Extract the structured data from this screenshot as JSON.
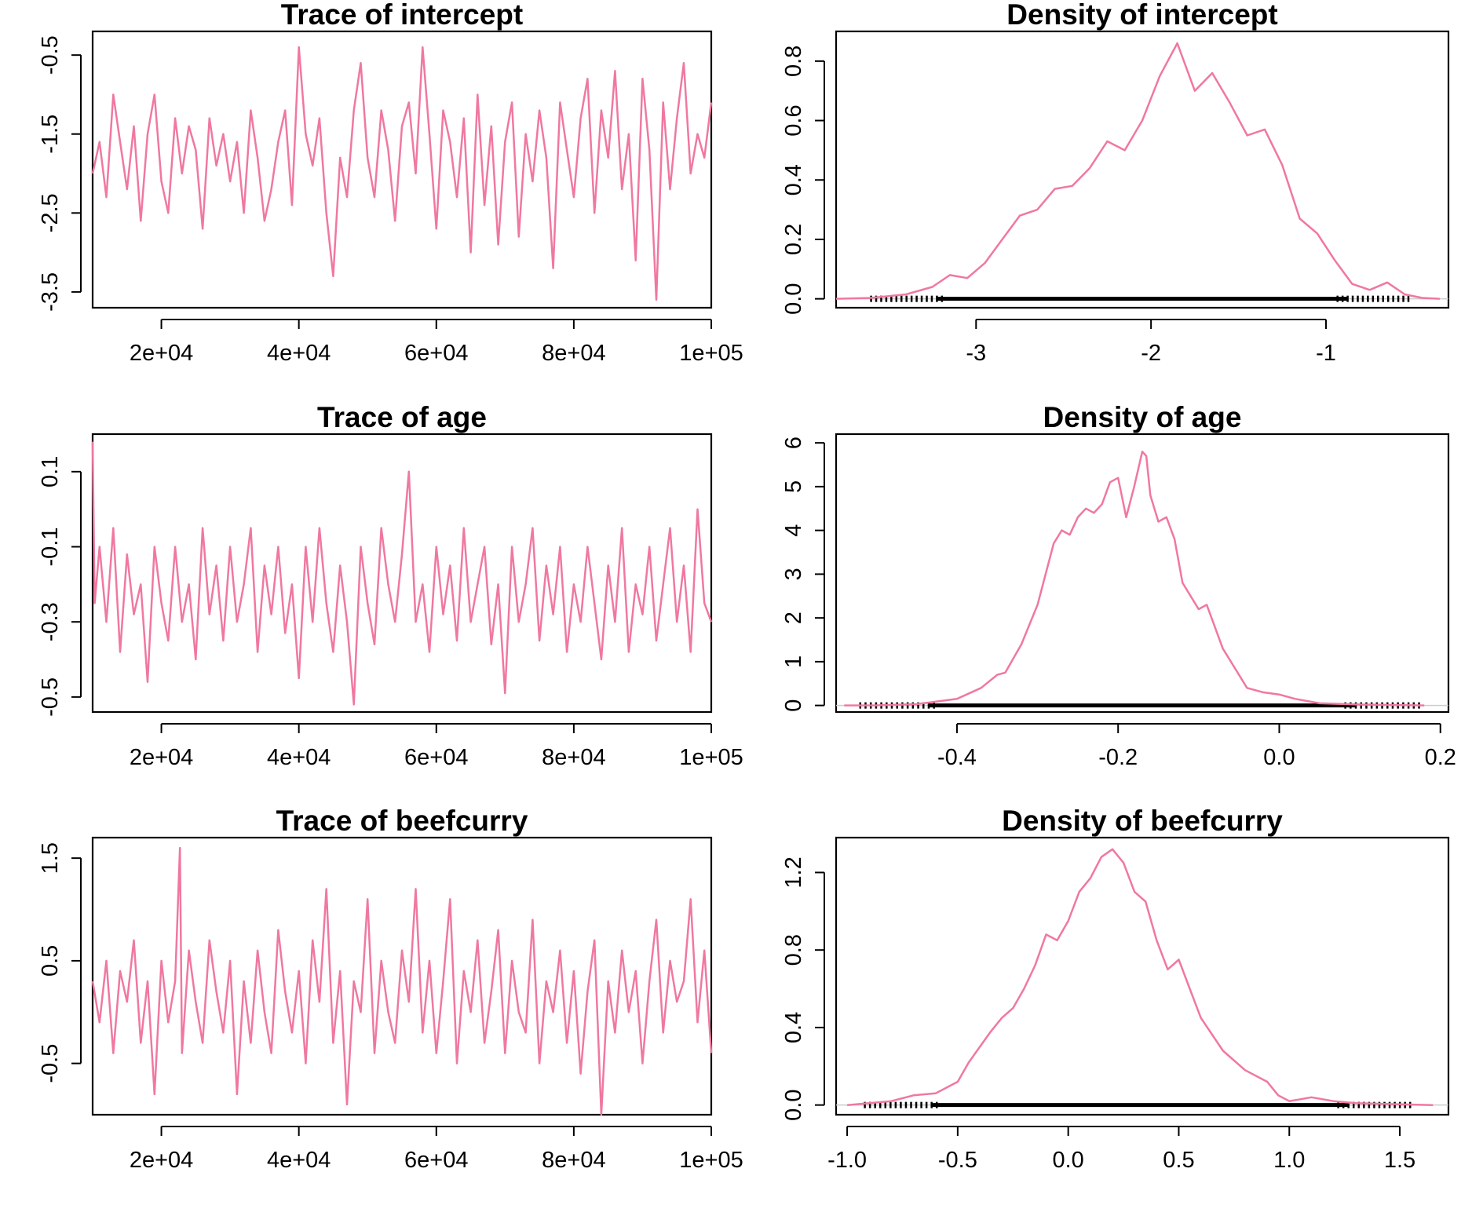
{
  "chart_data": [
    {
      "type": "line",
      "title": "Trace of intercept",
      "xlabel": "",
      "ylabel": "",
      "xlim": [
        10000,
        100000
      ],
      "ylim": [
        -3.7,
        -0.2
      ],
      "xticks": [
        20000,
        40000,
        60000,
        80000,
        100000
      ],
      "xtick_labels": [
        "2e+04",
        "4e+04",
        "6e+04",
        "8e+04",
        "1e+05"
      ],
      "yticks": [
        -3.5,
        -2.5,
        -1.5,
        -0.5
      ],
      "ytick_labels": [
        "-3.5",
        "-2.5",
        "-1.5",
        "-0.5"
      ],
      "color": "#F078A0",
      "grid": false,
      "series": [
        {
          "x": [
            10000,
            11000,
            12000,
            13000,
            14000,
            15000,
            16000,
            17000,
            18000,
            19000,
            20000,
            21000,
            22000,
            23000,
            24000,
            25000,
            26000,
            27000,
            28000,
            29000,
            30000,
            31000,
            32000,
            33000,
            34000,
            35000,
            36000,
            37000,
            38000,
            39000,
            40000,
            41000,
            42000,
            43000,
            44000,
            45000,
            46000,
            47000,
            48000,
            49000,
            50000,
            51000,
            52000,
            53000,
            54000,
            55000,
            56000,
            57000,
            58000,
            59000,
            60000,
            61000,
            62000,
            63000,
            64000,
            65000,
            66000,
            67000,
            68000,
            69000,
            70000,
            71000,
            72000,
            73000,
            74000,
            75000,
            76000,
            77000,
            78000,
            79000,
            80000,
            81000,
            82000,
            83000,
            84000,
            85000,
            86000,
            87000,
            88000,
            89000,
            90000,
            91000,
            92000,
            93000,
            94000,
            95000,
            96000,
            97000,
            98000,
            99000,
            100000
          ],
          "values": [
            -2.0,
            -1.6,
            -2.3,
            -1.0,
            -1.6,
            -2.2,
            -1.4,
            -2.6,
            -1.5,
            -1.0,
            -2.1,
            -2.5,
            -1.3,
            -2.0,
            -1.4,
            -1.7,
            -2.7,
            -1.3,
            -1.9,
            -1.5,
            -2.1,
            -1.6,
            -2.5,
            -1.2,
            -1.8,
            -2.6,
            -2.2,
            -1.6,
            -1.2,
            -2.4,
            -0.4,
            -1.5,
            -1.9,
            -1.3,
            -2.5,
            -3.3,
            -1.8,
            -2.3,
            -1.2,
            -0.6,
            -1.8,
            -2.3,
            -1.2,
            -1.7,
            -2.6,
            -1.4,
            -1.1,
            -2.0,
            -0.4,
            -1.5,
            -2.7,
            -1.2,
            -1.6,
            -2.3,
            -1.3,
            -3.0,
            -1.0,
            -2.4,
            -1.4,
            -2.9,
            -1.6,
            -1.1,
            -2.8,
            -1.5,
            -2.1,
            -1.2,
            -1.8,
            -3.2,
            -1.1,
            -1.7,
            -2.3,
            -1.3,
            -0.8,
            -2.5,
            -1.2,
            -1.8,
            -0.7,
            -2.2,
            -1.5,
            -3.1,
            -0.8,
            -1.7,
            -3.6,
            -1.1,
            -2.2,
            -1.3,
            -0.6,
            -2.0,
            -1.5,
            -1.8,
            -1.1
          ]
        }
      ]
    },
    {
      "type": "line",
      "title": "Density of intercept",
      "xlabel": "",
      "ylabel": "",
      "xlim": [
        -3.8,
        -0.3
      ],
      "ylim": [
        -0.03,
        0.9
      ],
      "xticks": [
        -3,
        -2,
        -1
      ],
      "xtick_labels": [
        "-3",
        "-2",
        "-1"
      ],
      "yticks": [
        0.0,
        0.2,
        0.4,
        0.6,
        0.8
      ],
      "ytick_labels": [
        "0.0",
        "0.2",
        "0.4",
        "0.6",
        "0.8"
      ],
      "color": "#F078A0",
      "rug": true,
      "rug_range": [
        -3.6,
        -0.5
      ],
      "grid": false,
      "series": [
        {
          "x": [
            -3.8,
            -3.6,
            -3.4,
            -3.25,
            -3.15,
            -3.05,
            -2.95,
            -2.85,
            -2.75,
            -2.65,
            -2.55,
            -2.45,
            -2.35,
            -2.25,
            -2.15,
            -2.05,
            -1.95,
            -1.85,
            -1.75,
            -1.65,
            -1.55,
            -1.45,
            -1.35,
            -1.25,
            -1.15,
            -1.05,
            -0.95,
            -0.85,
            -0.75,
            -0.65,
            -0.55,
            -0.45,
            -0.35
          ],
          "values": [
            0.0,
            0.003,
            0.015,
            0.04,
            0.08,
            0.07,
            0.12,
            0.2,
            0.28,
            0.3,
            0.37,
            0.38,
            0.44,
            0.53,
            0.5,
            0.6,
            0.75,
            0.86,
            0.7,
            0.76,
            0.66,
            0.55,
            0.57,
            0.45,
            0.27,
            0.22,
            0.13,
            0.05,
            0.03,
            0.055,
            0.015,
            0.003,
            0.0
          ]
        }
      ]
    },
    {
      "type": "line",
      "title": "Trace of age",
      "xlabel": "",
      "ylabel": "",
      "xlim": [
        10000,
        100000
      ],
      "ylim": [
        -0.54,
        0.2
      ],
      "xticks": [
        20000,
        40000,
        60000,
        80000,
        100000
      ],
      "xtick_labels": [
        "2e+04",
        "4e+04",
        "6e+04",
        "8e+04",
        "1e+05"
      ],
      "yticks": [
        -0.5,
        -0.3,
        -0.1,
        0.1
      ],
      "ytick_labels": [
        "-0.5",
        "-0.3",
        "-0.1",
        "0.1"
      ],
      "color": "#F078A0",
      "grid": false,
      "series": [
        {
          "x": [
            10000,
            10300,
            11000,
            12000,
            13000,
            14000,
            15000,
            16000,
            17000,
            18000,
            19000,
            20000,
            21000,
            22000,
            23000,
            24000,
            25000,
            26000,
            27000,
            28000,
            29000,
            30000,
            31000,
            32000,
            33000,
            34000,
            35000,
            36000,
            37000,
            38000,
            39000,
            40000,
            41000,
            42000,
            43000,
            44000,
            45000,
            46000,
            47000,
            48000,
            49000,
            50000,
            51000,
            52000,
            53000,
            54000,
            55000,
            56000,
            57000,
            58000,
            59000,
            60000,
            61000,
            62000,
            63000,
            64000,
            65000,
            66000,
            67000,
            68000,
            69000,
            70000,
            71000,
            72000,
            73000,
            74000,
            75000,
            76000,
            77000,
            78000,
            79000,
            80000,
            81000,
            82000,
            83000,
            84000,
            85000,
            86000,
            87000,
            88000,
            89000,
            90000,
            91000,
            92000,
            93000,
            94000,
            95000,
            96000,
            97000,
            98000,
            99000,
            100000
          ],
          "values": [
            0.18,
            -0.25,
            -0.1,
            -0.3,
            -0.05,
            -0.38,
            -0.12,
            -0.28,
            -0.2,
            -0.46,
            -0.1,
            -0.25,
            -0.35,
            -0.1,
            -0.3,
            -0.2,
            -0.4,
            -0.05,
            -0.28,
            -0.15,
            -0.35,
            -0.1,
            -0.3,
            -0.2,
            -0.05,
            -0.38,
            -0.15,
            -0.28,
            -0.1,
            -0.33,
            -0.2,
            -0.45,
            -0.1,
            -0.3,
            -0.05,
            -0.25,
            -0.38,
            -0.15,
            -0.3,
            -0.52,
            -0.1,
            -0.25,
            -0.36,
            -0.05,
            -0.2,
            -0.3,
            -0.12,
            0.1,
            -0.3,
            -0.2,
            -0.38,
            -0.1,
            -0.28,
            -0.15,
            -0.35,
            -0.05,
            -0.3,
            -0.2,
            -0.1,
            -0.36,
            -0.2,
            -0.49,
            -0.1,
            -0.3,
            -0.2,
            -0.05,
            -0.35,
            -0.15,
            -0.28,
            -0.1,
            -0.38,
            -0.2,
            -0.3,
            -0.1,
            -0.25,
            -0.4,
            -0.15,
            -0.3,
            -0.05,
            -0.38,
            -0.2,
            -0.28,
            -0.1,
            -0.35,
            -0.2,
            -0.05,
            -0.3,
            -0.15,
            -0.38,
            0.0,
            -0.25,
            -0.3
          ]
        }
      ]
    },
    {
      "type": "line",
      "title": "Density of age",
      "xlabel": "",
      "ylabel": "",
      "xlim": [
        -0.55,
        0.21
      ],
      "ylim": [
        -0.15,
        6.2
      ],
      "xticks": [
        -0.4,
        -0.2,
        0.0,
        0.2
      ],
      "xtick_labels": [
        "-0.4",
        "-0.2",
        "0.0",
        "0.2"
      ],
      "yticks": [
        0,
        1,
        2,
        3,
        4,
        5,
        6
      ],
      "ytick_labels": [
        "0",
        "1",
        "2",
        "3",
        "4",
        "5",
        "6"
      ],
      "color": "#F078A0",
      "rug": true,
      "rug_range": [
        -0.52,
        0.18
      ],
      "grid": false,
      "series": [
        {
          "x": [
            -0.54,
            -0.5,
            -0.45,
            -0.4,
            -0.37,
            -0.35,
            -0.34,
            -0.32,
            -0.3,
            -0.28,
            -0.27,
            -0.26,
            -0.25,
            -0.24,
            -0.23,
            -0.22,
            -0.21,
            -0.2,
            -0.19,
            -0.18,
            -0.17,
            -0.165,
            -0.16,
            -0.15,
            -0.14,
            -0.13,
            -0.12,
            -0.1,
            -0.09,
            -0.07,
            -0.06,
            -0.04,
            -0.02,
            0.0,
            0.02,
            0.05,
            0.1,
            0.18
          ],
          "values": [
            0.0,
            0.003,
            0.03,
            0.15,
            0.4,
            0.7,
            0.75,
            1.4,
            2.3,
            3.7,
            4.0,
            3.9,
            4.3,
            4.5,
            4.4,
            4.6,
            5.1,
            5.2,
            4.3,
            5.0,
            5.8,
            5.7,
            4.8,
            4.2,
            4.3,
            3.8,
            2.8,
            2.2,
            2.3,
            1.3,
            1.0,
            0.4,
            0.3,
            0.25,
            0.15,
            0.05,
            0.02,
            0.0
          ]
        }
      ]
    },
    {
      "type": "line",
      "title": "Trace of beefcurry",
      "xlabel": "",
      "ylabel": "",
      "xlim": [
        10000,
        100000
      ],
      "ylim": [
        -1.0,
        1.7
      ],
      "xticks": [
        20000,
        40000,
        60000,
        80000,
        100000
      ],
      "xtick_labels": [
        "2e+04",
        "4e+04",
        "6e+04",
        "8e+04",
        "1e+05"
      ],
      "yticks": [
        -0.5,
        0.5,
        1.5
      ],
      "ytick_labels": [
        "-0.5",
        "0.5",
        "1.5"
      ],
      "color": "#F078A0",
      "grid": false,
      "series": [
        {
          "x": [
            10000,
            11000,
            12000,
            13000,
            14000,
            15000,
            16000,
            17000,
            18000,
            19000,
            20000,
            21000,
            22000,
            22700,
            23000,
            24000,
            25000,
            26000,
            27000,
            28000,
            29000,
            30000,
            31000,
            32000,
            33000,
            34000,
            35000,
            36000,
            37000,
            38000,
            39000,
            40000,
            41000,
            42000,
            43000,
            44000,
            45000,
            46000,
            47000,
            48000,
            49000,
            50000,
            51000,
            52000,
            53000,
            54000,
            55000,
            56000,
            57000,
            58000,
            59000,
            60000,
            61000,
            62000,
            63000,
            64000,
            65000,
            66000,
            67000,
            68000,
            69000,
            70000,
            71000,
            72000,
            73000,
            74000,
            75000,
            76000,
            77000,
            78000,
            79000,
            80000,
            81000,
            82000,
            83000,
            84000,
            85000,
            86000,
            87000,
            88000,
            89000,
            90000,
            91000,
            92000,
            93000,
            94000,
            95000,
            96000,
            97000,
            98000,
            99000,
            100000
          ],
          "values": [
            0.3,
            -0.1,
            0.5,
            -0.4,
            0.4,
            0.1,
            0.7,
            -0.3,
            0.3,
            -0.8,
            0.5,
            -0.1,
            0.3,
            1.6,
            -0.4,
            0.6,
            0.1,
            -0.3,
            0.7,
            0.2,
            -0.2,
            0.5,
            -0.8,
            0.3,
            -0.3,
            0.6,
            0.0,
            -0.4,
            0.8,
            0.2,
            -0.2,
            0.4,
            -0.5,
            0.7,
            0.1,
            1.2,
            -0.3,
            0.4,
            -0.9,
            0.3,
            0.0,
            1.1,
            -0.4,
            0.5,
            0.0,
            -0.3,
            0.6,
            0.1,
            1.2,
            -0.2,
            0.5,
            -0.4,
            0.3,
            1.1,
            -0.5,
            0.4,
            0.0,
            0.7,
            -0.3,
            0.2,
            0.8,
            -0.4,
            0.5,
            0.0,
            -0.2,
            0.9,
            -0.5,
            0.3,
            0.0,
            0.6,
            -0.3,
            0.4,
            -0.6,
            0.2,
            0.7,
            -1.0,
            0.3,
            -0.2,
            0.6,
            0.0,
            0.4,
            -0.5,
            0.3,
            0.9,
            -0.2,
            0.5,
            0.1,
            0.3,
            1.1,
            -0.1,
            0.6,
            -0.4
          ]
        }
      ]
    },
    {
      "type": "line",
      "title": "Density of beefcurry",
      "xlabel": "",
      "ylabel": "",
      "xlim": [
        -1.05,
        1.72
      ],
      "ylim": [
        -0.05,
        1.38
      ],
      "xticks": [
        -1.0,
        -0.5,
        0.0,
        0.5,
        1.0,
        1.5
      ],
      "xtick_labels": [
        "-1.0",
        "-0.5",
        "0.0",
        "0.5",
        "1.0",
        "1.5"
      ],
      "yticks": [
        0.0,
        0.4,
        0.8,
        1.2
      ],
      "ytick_labels": [
        "0.0",
        "0.4",
        "0.8",
        "1.2"
      ],
      "color": "#F078A0",
      "rug": true,
      "rug_range": [
        -0.92,
        1.57
      ],
      "grid": false,
      "series": [
        {
          "x": [
            -1.0,
            -0.9,
            -0.8,
            -0.7,
            -0.6,
            -0.5,
            -0.45,
            -0.4,
            -0.35,
            -0.3,
            -0.25,
            -0.2,
            -0.15,
            -0.1,
            -0.05,
            0.0,
            0.05,
            0.1,
            0.15,
            0.2,
            0.25,
            0.3,
            0.35,
            0.4,
            0.45,
            0.5,
            0.55,
            0.6,
            0.7,
            0.8,
            0.9,
            0.95,
            1.0,
            1.05,
            1.1,
            1.2,
            1.3,
            1.45,
            1.65
          ],
          "values": [
            0.0,
            0.01,
            0.02,
            0.05,
            0.06,
            0.12,
            0.22,
            0.3,
            0.38,
            0.45,
            0.5,
            0.6,
            0.72,
            0.88,
            0.85,
            0.95,
            1.1,
            1.17,
            1.28,
            1.32,
            1.25,
            1.1,
            1.05,
            0.85,
            0.7,
            0.75,
            0.6,
            0.45,
            0.28,
            0.18,
            0.12,
            0.05,
            0.02,
            0.03,
            0.04,
            0.02,
            0.01,
            0.005,
            0.0
          ]
        }
      ]
    }
  ]
}
